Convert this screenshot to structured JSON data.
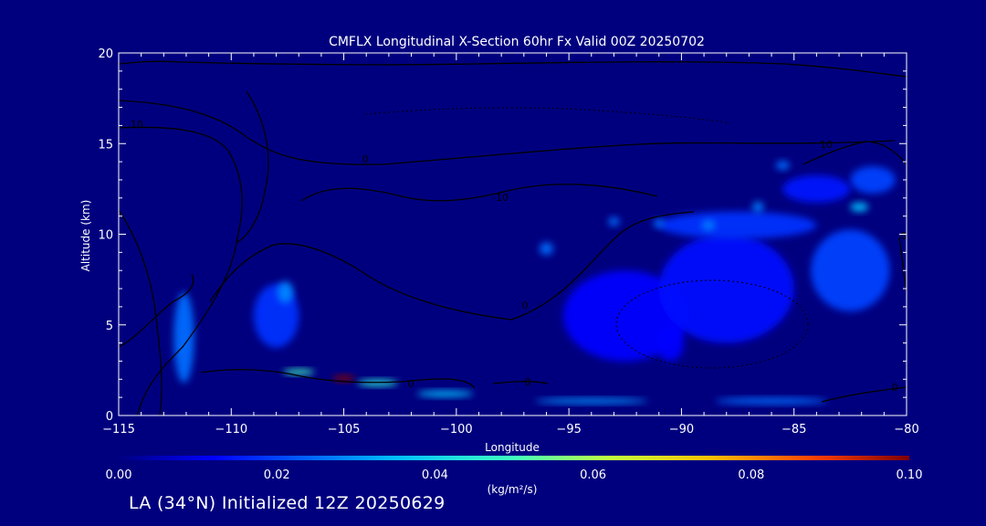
{
  "chart_data": {
    "type": "heatmap",
    "title": "CMFLX Longitudinal X-Section 60hr  Fx Valid 00Z 20250702",
    "xlabel": "Longitude",
    "ylabel": "Altitude (km)",
    "xlim": [
      -115,
      -80
    ],
    "ylim": [
      0,
      20
    ],
    "x_ticks": [
      -115,
      -110,
      -105,
      -100,
      -95,
      -90,
      -85,
      -80
    ],
    "y_ticks": [
      0,
      5,
      10,
      15,
      20
    ],
    "colorbar": {
      "min": 0.0,
      "max": 0.1,
      "ticks": [
        "0.00",
        "0.02",
        "0.04",
        "0.06",
        "0.08",
        "0.10"
      ],
      "units_label": "(kg/m²/s)"
    },
    "contour_labels": [
      "10",
      "0",
      "-10",
      "0",
      "0",
      "0",
      "0",
      "10",
      "0"
    ],
    "fields": [
      {
        "lon": -112.1,
        "alt": 4.3,
        "value": 0.025,
        "w": 0.9,
        "h": 5.0
      },
      {
        "lon": -108.0,
        "alt": 5.5,
        "value": 0.018,
        "w": 2.0,
        "h": 3.5
      },
      {
        "lon": -107.6,
        "alt": 6.8,
        "value": 0.028,
        "w": 0.7,
        "h": 1.2
      },
      {
        "lon": -105.0,
        "alt": 2.05,
        "value": 0.1,
        "w": 1.0,
        "h": 0.35
      },
      {
        "lon": -107.0,
        "alt": 2.4,
        "value": 0.05,
        "w": 1.4,
        "h": 0.3
      },
      {
        "lon": -103.5,
        "alt": 1.8,
        "value": 0.045,
        "w": 1.8,
        "h": 0.35
      },
      {
        "lon": -100.5,
        "alt": 1.2,
        "value": 0.035,
        "w": 2.5,
        "h": 0.35
      },
      {
        "lon": -94.0,
        "alt": 0.8,
        "value": 0.03,
        "w": 5.0,
        "h": 0.3
      },
      {
        "lon": -86.0,
        "alt": 0.8,
        "value": 0.025,
        "w": 5.0,
        "h": 0.35
      },
      {
        "lon": -92.5,
        "alt": 5.5,
        "value": 0.012,
        "w": 5.5,
        "h": 5.0
      },
      {
        "lon": -88.0,
        "alt": 7.0,
        "value": 0.014,
        "w": 6.0,
        "h": 6.0
      },
      {
        "lon": -82.5,
        "alt": 8.0,
        "value": 0.02,
        "w": 3.5,
        "h": 4.5
      },
      {
        "lon": -87.5,
        "alt": 10.5,
        "value": 0.018,
        "w": 7.0,
        "h": 1.5
      },
      {
        "lon": -96.0,
        "alt": 9.2,
        "value": 0.025,
        "w": 0.6,
        "h": 0.7
      },
      {
        "lon": -93.0,
        "alt": 10.7,
        "value": 0.025,
        "w": 0.5,
        "h": 0.5
      },
      {
        "lon": -91.0,
        "alt": 10.6,
        "value": 0.025,
        "w": 0.5,
        "h": 0.5
      },
      {
        "lon": -88.8,
        "alt": 10.5,
        "value": 0.027,
        "w": 0.6,
        "h": 0.6
      },
      {
        "lon": -86.6,
        "alt": 11.5,
        "value": 0.027,
        "w": 0.5,
        "h": 0.6
      },
      {
        "lon": -82.1,
        "alt": 11.5,
        "value": 0.035,
        "w": 0.8,
        "h": 0.5
      },
      {
        "lon": -85.5,
        "alt": 13.8,
        "value": 0.025,
        "w": 0.6,
        "h": 0.5
      },
      {
        "lon": -81.5,
        "alt": 13.0,
        "value": 0.02,
        "w": 2.0,
        "h": 1.5
      },
      {
        "lon": -84.0,
        "alt": 12.5,
        "value": 0.015,
        "w": 3.0,
        "h": 1.5
      },
      {
        "lon": -90.5,
        "alt": 4.0,
        "value": 0.012,
        "w": 1.2,
        "h": 2.0
      }
    ]
  },
  "footer_text": "LA (34°N) Initialized 12Z 20250629",
  "colors": {
    "background": "#00007f",
    "foreground": "#ffffff",
    "contour": "#000000"
  }
}
